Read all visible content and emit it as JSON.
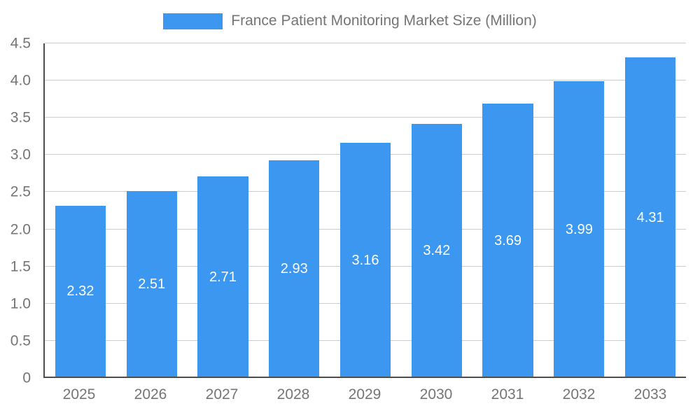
{
  "legend": {
    "label": "France Patient Monitoring Market Size (Million)"
  },
  "chart_data": {
    "type": "bar",
    "title": "France Patient Monitoring Market Size (Million)",
    "categories": [
      "2025",
      "2026",
      "2027",
      "2028",
      "2029",
      "2030",
      "2031",
      "2032",
      "2033"
    ],
    "series": [
      {
        "name": "France Patient Monitoring Market Size (Million)",
        "values": [
          2.32,
          2.51,
          2.71,
          2.93,
          3.16,
          3.42,
          3.69,
          3.99,
          4.31
        ],
        "data_labels": [
          "2.32",
          "2.51",
          "2.71",
          "2.93",
          "3.16",
          "3.42",
          "3.69",
          "3.99",
          "4.31"
        ]
      }
    ],
    "xlabel": "",
    "ylabel": "",
    "ylim": [
      0,
      4.5
    ],
    "ytick_step": 0.5,
    "yticks": [
      "0",
      "0.5",
      "1.0",
      "1.5",
      "2.0",
      "2.5",
      "3.0",
      "3.5",
      "4.0",
      "4.5"
    ],
    "grid": true,
    "legend_position": "top",
    "colors": {
      "bar": "#3b97f0",
      "bar_label": "#ffffff",
      "axis_text": "#757575",
      "gridline": "#cccccc",
      "axis_line": "#4d4d4d",
      "background": "#ffffff"
    }
  }
}
